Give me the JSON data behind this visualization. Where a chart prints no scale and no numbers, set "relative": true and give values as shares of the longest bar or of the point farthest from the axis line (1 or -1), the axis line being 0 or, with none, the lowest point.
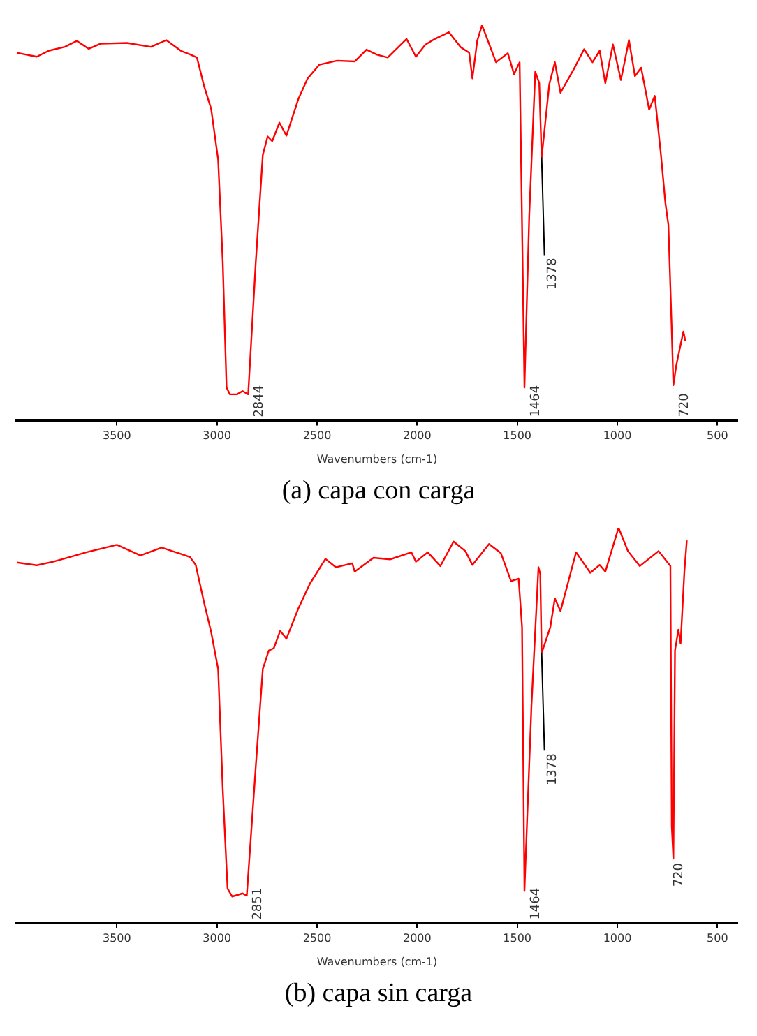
{
  "chart_data": [
    {
      "type": "line",
      "title": "(a) capa con carga",
      "xlabel": "Wavenumbers (cm-1)",
      "relative": true,
      "marker": "none",
      "xlim": [
        4000,
        400
      ],
      "xticks": [
        3500,
        3000,
        2500,
        2000,
        1500,
        1000,
        500
      ],
      "x": [
        3999,
        3900,
        3841,
        3760,
        3700,
        3640,
        3582,
        3450,
        3330,
        3253,
        3180,
        3135,
        3100,
        3065,
        3029,
        2994,
        2971,
        2952,
        2935,
        2900,
        2872,
        2844,
        2806,
        2771,
        2747,
        2724,
        2688,
        2653,
        2594,
        2547,
        2488,
        2400,
        2312,
        2253,
        2200,
        2147,
        2053,
        2006,
        1960,
        1912,
        1841,
        1782,
        1740,
        1724,
        1700,
        1676,
        1606,
        1547,
        1516,
        1488,
        1475,
        1464,
        1440,
        1410,
        1390,
        1378,
        1340,
        1312,
        1284,
        1218,
        1166,
        1124,
        1088,
        1060,
        1022,
        982,
        942,
        912,
        881,
        841,
        813,
        782,
        760,
        745,
        728,
        720,
        705,
        690,
        670,
        660
      ],
      "series": [
        {
          "color": "#ff0000",
          "values": [
            0.93,
            0.92,
            0.935,
            0.945,
            0.96,
            0.94,
            0.953,
            0.955,
            0.945,
            0.962,
            0.935,
            0.926,
            0.918,
            0.847,
            0.788,
            0.659,
            0.4,
            0.082,
            0.065,
            0.065,
            0.073,
            0.065,
            0.4,
            0.671,
            0.718,
            0.706,
            0.753,
            0.72,
            0.812,
            0.865,
            0.9,
            0.91,
            0.908,
            0.938,
            0.925,
            0.918,
            0.965,
            0.92,
            0.95,
            0.965,
            0.982,
            0.944,
            0.93,
            0.865,
            0.96,
            1,
            0.906,
            0.929,
            0.876,
            0.906,
            0.459,
            0.082,
            0.518,
            0.882,
            0.853,
            0.665,
            0.85,
            0.906,
            0.829,
            0.888,
            0.939,
            0.906,
            0.935,
            0.853,
            0.951,
            0.861,
            0.962,
            0.871,
            0.892,
            0.786,
            0.821,
            0.671,
            0.55,
            0.494,
            0.224,
            0.088,
            0.14,
            0.176,
            0.224,
            0.2
          ]
        }
      ],
      "annotations": [
        {
          "text": "2844",
          "x": 2844,
          "y": 0.065
        },
        {
          "text": "1464",
          "x": 1464,
          "y": 0.082
        },
        {
          "text": "1378",
          "x": 1378,
          "y": 0.665
        },
        {
          "text": "720",
          "x": 720,
          "y": 0.088
        }
      ]
    },
    {
      "type": "line",
      "title": "(b) capa sin carga",
      "xlabel": "Wavenumbers (cm-1)",
      "relative": true,
      "marker": "none",
      "xlim": [
        4000,
        400
      ],
      "xticks": [
        3500,
        3000,
        2500,
        2000,
        1500,
        1000,
        500
      ],
      "x": [
        3999,
        3900,
        3818,
        3740,
        3653,
        3500,
        3382,
        3276,
        3135,
        3106,
        3065,
        3029,
        2994,
        2971,
        2947,
        2924,
        2872,
        2851,
        2806,
        2771,
        2741,
        2716,
        2684,
        2653,
        2594,
        2535,
        2458,
        2406,
        2324,
        2312,
        2218,
        2135,
        2029,
        2006,
        1947,
        1884,
        1818,
        1759,
        1724,
        1641,
        1582,
        1531,
        1493,
        1476,
        1464,
        1429,
        1394,
        1385,
        1378,
        1335,
        1312,
        1284,
        1206,
        1135,
        1088,
        1060,
        994,
        947,
        888,
        794,
        735,
        728,
        720,
        712,
        695,
        684,
        665,
        653
      ],
      "series": [
        {
          "color": "#ff0000",
          "values": [
            0.912,
            0.905,
            0.914,
            0.925,
            0.938,
            0.957,
            0.93,
            0.95,
            0.926,
            0.906,
            0.812,
            0.736,
            0.642,
            0.338,
            0.086,
            0.066,
            0.074,
            0.068,
            0.396,
            0.642,
            0.689,
            0.695,
            0.739,
            0.719,
            0.795,
            0.859,
            0.921,
            0.9,
            0.91,
            0.889,
            0.924,
            0.92,
            0.938,
            0.914,
            0.938,
            0.903,
            0.965,
            0.941,
            0.906,
            0.959,
            0.936,
            0.865,
            0.871,
            0.748,
            0.08,
            0.549,
            0.9,
            0.883,
            0.683,
            0.748,
            0.821,
            0.789,
            0.938,
            0.886,
            0.906,
            0.889,
            1,
            0.941,
            0.903,
            0.941,
            0.903,
            0.244,
            0.162,
            0.689,
            0.742,
            0.707,
            0.889,
            0.968
          ]
        }
      ],
      "annotations": [
        {
          "text": "2851",
          "x": 2851,
          "y": 0.068
        },
        {
          "text": "1464",
          "x": 1464,
          "y": 0.08
        },
        {
          "text": "1378",
          "x": 1378,
          "y": 0.683
        },
        {
          "text": "720",
          "x": 720,
          "y": 0.162
        }
      ]
    }
  ]
}
